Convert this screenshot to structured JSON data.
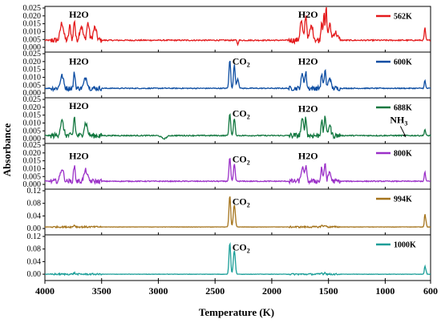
{
  "chart_data": {
    "type": "line",
    "xlabel": "Temperature (K)",
    "ylabel": "Absorbance",
    "xlim": [
      4000,
      600
    ],
    "x_ticks": [
      4000,
      3500,
      3000,
      2500,
      2000,
      1500,
      1000,
      600
    ],
    "annotation_arrow": "NH3",
    "panels": [
      {
        "name": "562K",
        "color": "#e41a1c",
        "ylim": [
          -0.002,
          0.025
        ],
        "y_ticks": [
          "0.000",
          "0.005",
          "0.010",
          "0.015",
          "0.020",
          "0.025"
        ],
        "labels": [
          {
            "text": "H2O",
            "x": 3700,
            "y": 0.019
          },
          {
            "text": "H2O",
            "x": 1680,
            "y": 0.019
          }
        ],
        "baseline": 0.0045,
        "peaks": [
          [
            3850,
            0.011,
            20
          ],
          [
            3780,
            0.009,
            12
          ],
          [
            3740,
            0.013,
            10
          ],
          [
            3680,
            0.009,
            20
          ],
          [
            3620,
            0.011,
            15
          ],
          [
            3560,
            0.008,
            20
          ],
          [
            2300,
            -0.003,
            6
          ],
          [
            1740,
            0.012,
            15
          ],
          [
            1700,
            0.016,
            12
          ],
          [
            1650,
            0.009,
            20
          ],
          [
            1560,
            0.012,
            10
          ],
          [
            1540,
            0.017,
            8
          ],
          [
            1520,
            0.022,
            8
          ],
          [
            1490,
            0.01,
            15
          ],
          [
            1440,
            0.005,
            25
          ],
          [
            650,
            0.008,
            8
          ]
        ],
        "noise": 0.0015
      },
      {
        "name": "600K",
        "color": "#0c4da2",
        "ylim": [
          -0.002,
          0.025
        ],
        "y_ticks": [
          "0.000",
          "0.005",
          "0.010",
          "0.015",
          "0.020",
          "0.025"
        ],
        "labels": [
          {
            "text": "H2O",
            "x": 3700,
            "y": 0.018
          },
          {
            "text": "CO2",
            "x": 2270,
            "y": 0.018
          },
          {
            "text": "H2O",
            "x": 1680,
            "y": 0.018
          }
        ],
        "baseline": 0.003,
        "peaks": [
          [
            3850,
            0.008,
            20
          ],
          [
            3740,
            0.01,
            10
          ],
          [
            3640,
            0.007,
            20
          ],
          [
            2370,
            0.018,
            10
          ],
          [
            2330,
            0.015,
            10
          ],
          [
            2300,
            0.006,
            12
          ],
          [
            1730,
            0.009,
            15
          ],
          [
            1700,
            0.01,
            10
          ],
          [
            1560,
            0.009,
            10
          ],
          [
            1530,
            0.012,
            10
          ],
          [
            1490,
            0.007,
            15
          ],
          [
            650,
            0.005,
            8
          ]
        ],
        "noise": 0.0012
      },
      {
        "name": "688K",
        "color": "#137840",
        "ylim": [
          -0.002,
          0.025
        ],
        "y_ticks": [
          "0.000",
          "0.005",
          "0.010",
          "0.015",
          "0.020",
          "0.025"
        ],
        "labels": [
          {
            "text": "H2O",
            "x": 3700,
            "y": 0.019
          },
          {
            "text": "CO2",
            "x": 2270,
            "y": 0.014
          },
          {
            "text": "H2O",
            "x": 1680,
            "y": 0.017
          },
          {
            "text": "NH3",
            "x": 880,
            "y": 0.01
          }
        ],
        "baseline": 0.002,
        "peaks": [
          [
            3850,
            0.009,
            20
          ],
          [
            3740,
            0.012,
            10
          ],
          [
            3640,
            0.008,
            20
          ],
          [
            2370,
            0.014,
            10
          ],
          [
            2330,
            0.011,
            10
          ],
          [
            1730,
            0.01,
            15
          ],
          [
            1700,
            0.011,
            10
          ],
          [
            1560,
            0.01,
            10
          ],
          [
            1530,
            0.013,
            10
          ],
          [
            1490,
            0.007,
            15
          ],
          [
            650,
            0.004,
            8
          ],
          [
            2950,
            -0.002,
            30
          ]
        ],
        "noise": 0.0014
      },
      {
        "name": "800K",
        "color": "#9b30c8",
        "ylim": [
          -0.002,
          0.025
        ],
        "y_ticks": [
          "0.000",
          "0.005",
          "0.010",
          "0.015",
          "0.020",
          "0.025"
        ],
        "labels": [
          {
            "text": "H2O",
            "x": 3700,
            "y": 0.016
          },
          {
            "text": "CO2",
            "x": 2270,
            "y": 0.014
          },
          {
            "text": "H2O",
            "x": 1680,
            "y": 0.016
          }
        ],
        "baseline": 0.002,
        "peaks": [
          [
            3850,
            0.008,
            20
          ],
          [
            3740,
            0.01,
            10
          ],
          [
            3640,
            0.007,
            20
          ],
          [
            2370,
            0.015,
            10
          ],
          [
            2330,
            0.011,
            10
          ],
          [
            1730,
            0.009,
            15
          ],
          [
            1700,
            0.01,
            10
          ],
          [
            1560,
            0.009,
            10
          ],
          [
            1530,
            0.012,
            10
          ],
          [
            1490,
            0.006,
            15
          ],
          [
            650,
            0.006,
            8
          ]
        ],
        "noise": 0.0012
      },
      {
        "name": "994K",
        "color": "#a5741c",
        "ylim": [
          -0.015,
          0.12
        ],
        "y_ticks": [
          "0.00",
          "0.04",
          "0.08",
          "0.12"
        ],
        "labels": [
          {
            "text": "CO2",
            "x": 2270,
            "y": 0.075
          }
        ],
        "baseline": 0.005,
        "peaks": [
          [
            2370,
            0.1,
            10
          ],
          [
            2330,
            0.07,
            12
          ],
          [
            3740,
            0.006,
            10
          ],
          [
            1560,
            0.005,
            10
          ],
          [
            1530,
            0.006,
            10
          ],
          [
            650,
            0.04,
            7
          ],
          [
            640,
            0.015,
            6
          ]
        ],
        "noise": 0.002
      },
      {
        "name": "1000K",
        "color": "#1a9e98",
        "ylim": [
          -0.015,
          0.12
        ],
        "y_ticks": [
          "0.00",
          "0.04",
          "0.08",
          "0.12"
        ],
        "labels": [
          {
            "text": "CO2",
            "x": 2270,
            "y": 0.075
          }
        ],
        "baseline": 0.0,
        "peaks": [
          [
            2370,
            0.1,
            10
          ],
          [
            2330,
            0.075,
            12
          ],
          [
            3740,
            0.004,
            10
          ],
          [
            1560,
            0.004,
            10
          ],
          [
            1530,
            0.005,
            10
          ],
          [
            650,
            0.025,
            7
          ],
          [
            640,
            0.01,
            6
          ]
        ],
        "noise": 0.002
      }
    ]
  }
}
